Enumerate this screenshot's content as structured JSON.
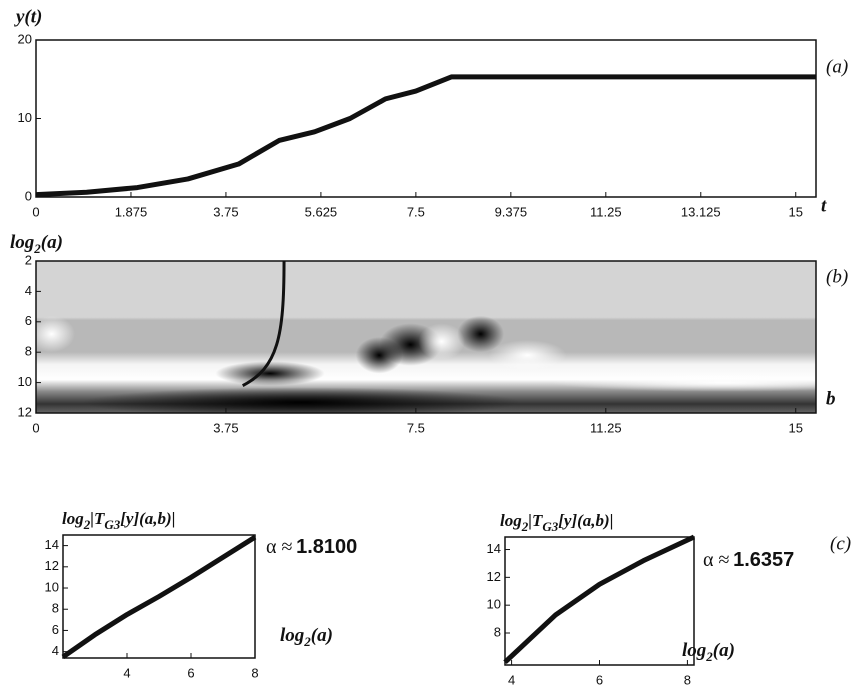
{
  "chart_data": [
    {
      "type": "line",
      "y_label": "y(t)",
      "x_label": "t",
      "panel_label": "(a)",
      "x": [
        0,
        1,
        2,
        3,
        4,
        4.8,
        5.5,
        6.2,
        6.9,
        7.5,
        8.2,
        15.4
      ],
      "series": [
        {
          "color": "#111111",
          "values": [
            0.3,
            0.6,
            1.2,
            2.3,
            4.2,
            7.2,
            8.3,
            10,
            12.5,
            13.5,
            15.3,
            15.3
          ]
        }
      ],
      "xlim": [
        0,
        15.4
      ],
      "ylim": [
        0,
        20
      ],
      "xticks": [
        0,
        1.875,
        3.75,
        5.625,
        7.5,
        9.375,
        11.25,
        13.125,
        15
      ],
      "yticks": [
        0,
        10,
        20
      ]
    },
    {
      "type": "scalogram",
      "y_label": {
        "base": "log",
        "sub": "2",
        "rest": "(a)"
      },
      "x_label": "b",
      "panel_label": "(b)",
      "xlim": [
        0,
        15.4
      ],
      "ylim": [
        12,
        2
      ],
      "xticks": [
        0,
        3.75,
        7.5,
        11.25,
        15
      ],
      "yticks": [
        2,
        4,
        6,
        8,
        10,
        12
      ]
    },
    {
      "type": "line",
      "y_label": {
        "base": "log",
        "sub": "2",
        "mid": "|T",
        "sub2": "G3",
        "rest": "[y](a,b)|"
      },
      "x_label": {
        "base": "log",
        "sub": "2",
        "rest": "(a)"
      },
      "alpha_label": "α ≈",
      "alpha_value": "1.8100",
      "panel_label": "(c)",
      "x": [
        2,
        3,
        4,
        5,
        6,
        7,
        8
      ],
      "series": [
        {
          "color": "#111111",
          "values": [
            3.5,
            5.6,
            7.5,
            9.2,
            11.0,
            12.9,
            14.8
          ]
        }
      ],
      "xlim": [
        2,
        8
      ],
      "ylim": [
        3.4,
        15
      ],
      "xticks": [
        4,
        6,
        8
      ],
      "yticks": [
        4,
        6,
        8,
        10,
        12,
        14
      ]
    },
    {
      "type": "line",
      "y_label": {
        "base": "log",
        "sub": "2",
        "mid": "|T",
        "sub2": "G3",
        "rest": "[y](a,b)|"
      },
      "x_label": {
        "base": "log",
        "sub": "2",
        "rest": "(a)"
      },
      "alpha_label": "α ≈",
      "alpha_value": "1.6357",
      "x": [
        3.85,
        5,
        6,
        7,
        8.15
      ],
      "series": [
        {
          "color": "#111111",
          "values": [
            5.9,
            9.3,
            11.5,
            13.2,
            14.9
          ]
        }
      ],
      "xlim": [
        3.85,
        8.15
      ],
      "ylim": [
        5.7,
        14.9
      ],
      "xticks": [
        4,
        6,
        8
      ],
      "yticks": [
        8,
        10,
        12,
        14
      ]
    }
  ]
}
